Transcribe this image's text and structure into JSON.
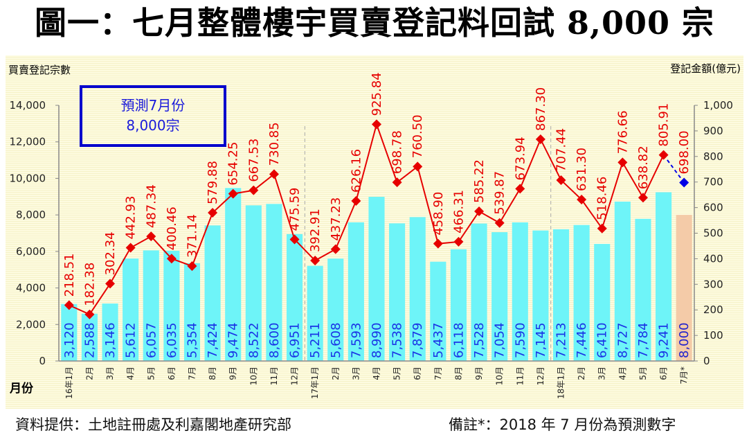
{
  "title": "圖一：七月整體樓宇買賣登記料回試 8,000 宗",
  "footer": {
    "source": "資料提供：土地註冊處及利嘉閣地產研究部",
    "note": "備註*：2018 年 7 月份為預測數字"
  },
  "annotation_box": {
    "line1": "預測7月份",
    "line2": "8,000宗",
    "border_color": "#0000cc"
  },
  "colors": {
    "bar": "#6ef4f8",
    "bar_forecast": "#f4cba8",
    "bar_label": "#1a33e6",
    "bar_label_forecast": "#2222cc",
    "line": "#e60000",
    "line_forecast": "#0000e6",
    "separator": "#aaaaaa",
    "axis": "#888888"
  },
  "chart_data": {
    "type": "bar+line",
    "title": "圖一：七月整體樓宇買賣登記料回試 8,000 宗",
    "xlabel": "月份",
    "ylabel_left": "買賣登記宗數",
    "ylabel_right": "登記金額(億元)",
    "ylim_left": [
      0,
      14000
    ],
    "ylim_right": [
      0,
      1000
    ],
    "yticks_left": [
      "0",
      "2,000",
      "4,000",
      "6,000",
      "8,000",
      "10,000",
      "12,000",
      "14,000"
    ],
    "yticks_right": [
      "0",
      "100",
      "200",
      "300",
      "400",
      "500",
      "600",
      "700",
      "800",
      "900",
      "1,000"
    ],
    "grid": false,
    "year_separators_after_index": [
      11,
      23
    ],
    "categories": [
      "16年1月",
      "2月",
      "3月",
      "4月",
      "5月",
      "6月",
      "7月",
      "8月",
      "9月",
      "10月",
      "11月",
      "12月",
      "17年1月",
      "2月",
      "3月",
      "4月",
      "5月",
      "6月",
      "7月",
      "8月",
      "9月",
      "10月",
      "11月",
      "12月",
      "18年1月",
      "2月",
      "3月",
      "4月",
      "5月",
      "6月",
      "7月*"
    ],
    "forecast_index": 30,
    "series": [
      {
        "name": "買賣登記宗數",
        "type": "bar",
        "axis": "left",
        "values": [
          3120,
          2588,
          3146,
          5612,
          6057,
          6035,
          5354,
          7424,
          9474,
          8522,
          8600,
          6951,
          5211,
          5608,
          7593,
          8990,
          7538,
          7879,
          5437,
          6118,
          7528,
          7054,
          7590,
          7145,
          7213,
          7446,
          6410,
          8727,
          7784,
          9241,
          8000
        ],
        "labels": [
          "3,120",
          "2,588",
          "3,146",
          "5,612",
          "6,057",
          "6,035",
          "5,354",
          "7,424",
          "9,474",
          "8,522",
          "8,600",
          "6,951",
          "5,211",
          "5,608",
          "7,593",
          "8,990",
          "7,538",
          "7,879",
          "5,437",
          "6,118",
          "7,528",
          "7,054",
          "7,590",
          "7,145",
          "7,213",
          "7,446",
          "6,410",
          "8,727",
          "7,784",
          "9,241",
          "8,000"
        ]
      },
      {
        "name": "登記金額(億元)",
        "type": "line",
        "axis": "right",
        "values": [
          218.51,
          182.38,
          302.34,
          442.93,
          487.34,
          400.46,
          371.14,
          579.88,
          654.25,
          667.53,
          730.85,
          475.59,
          392.91,
          437.23,
          626.16,
          925.84,
          698.78,
          760.5,
          458.9,
          466.31,
          585.22,
          539.87,
          673.94,
          867.3,
          707.44,
          631.3,
          518.46,
          776.66,
          638.82,
          805.91,
          698.0
        ],
        "labels": [
          "218.51",
          "182.38",
          "302.34",
          "442.93",
          "487.34",
          "400.46",
          "371.14",
          "579.88",
          "654.25",
          "667.53",
          "730.85",
          "475.59",
          "392.91",
          "437.23",
          "626.16",
          "925.84",
          "698.78",
          "760.50",
          "458.90",
          "466.31",
          "585.22",
          "539.87",
          "673.94",
          "867.30",
          "707.44",
          "631.30",
          "518.46",
          "776.66",
          "638.82",
          "805.91",
          "698.00"
        ]
      }
    ]
  }
}
